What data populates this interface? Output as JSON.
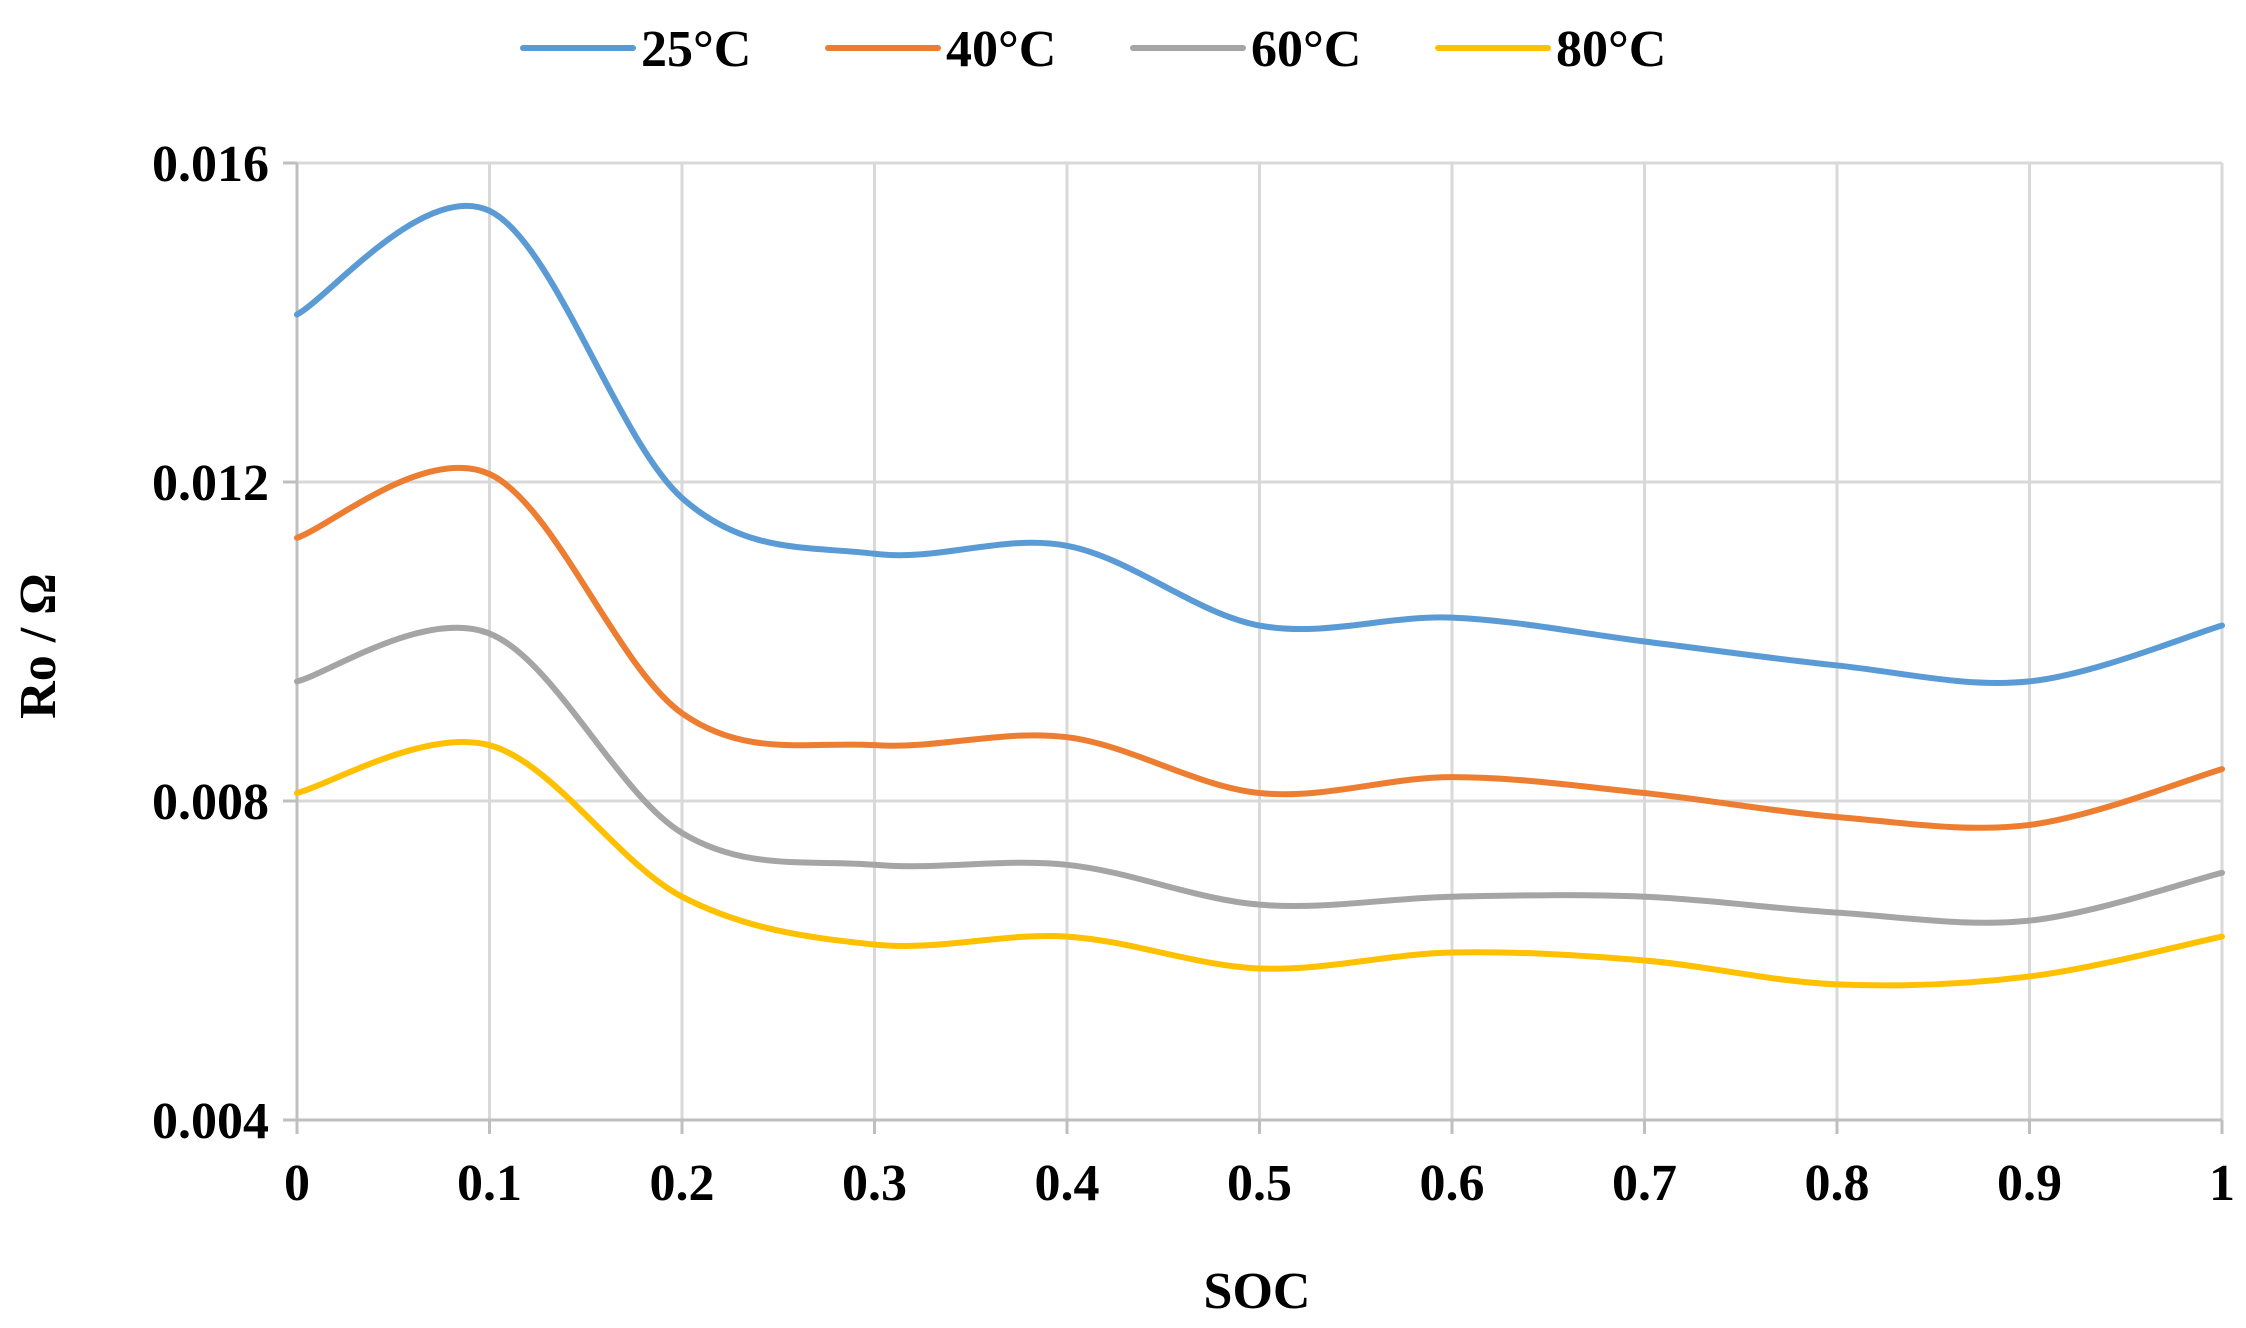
{
  "chart_data": {
    "type": "line",
    "title": "",
    "xlabel": "SOC",
    "ylabel": "Ro / Ω",
    "xlim": [
      0,
      1
    ],
    "ylim": [
      0.004,
      0.016
    ],
    "grid": true,
    "legend_position": "top-center",
    "x": [
      0,
      0.1,
      0.2,
      0.3,
      0.4,
      0.5,
      0.6,
      0.7,
      0.8,
      0.9,
      1
    ],
    "x_tick_labels": [
      "0",
      "0.1",
      "0.2",
      "0.3",
      "0.4",
      "0.5",
      "0.6",
      "0.7",
      "0.8",
      "0.9",
      "1"
    ],
    "y_ticks": [
      0.004,
      0.008,
      0.012,
      0.016
    ],
    "y_tick_labels": [
      "0.004",
      "0.008",
      "0.012",
      "0.016"
    ],
    "series": [
      {
        "name": "25°C",
        "color": "#5B9BD5",
        "values": [
          0.0141,
          0.0154,
          0.0118,
          0.0111,
          0.0112,
          0.0102,
          0.0103,
          0.01,
          0.0097,
          0.0095,
          0.0102
        ]
      },
      {
        "name": "40°C",
        "color": "#ED7D31",
        "values": [
          0.0113,
          0.0121,
          0.0091,
          0.0087,
          0.0088,
          0.0081,
          0.0083,
          0.0081,
          0.0078,
          0.0077,
          0.0084
        ]
      },
      {
        "name": "60°C",
        "color": "#A5A5A5",
        "values": [
          0.0095,
          0.0101,
          0.0076,
          0.0072,
          0.0072,
          0.0067,
          0.0068,
          0.0068,
          0.0066,
          0.0065,
          0.0071
        ]
      },
      {
        "name": "80°C",
        "color": "#FFC000",
        "values": [
          0.0081,
          0.0087,
          0.0068,
          0.0062,
          0.0063,
          0.0059,
          0.0061,
          0.006,
          0.0057,
          0.0058,
          0.0063
        ]
      }
    ]
  }
}
